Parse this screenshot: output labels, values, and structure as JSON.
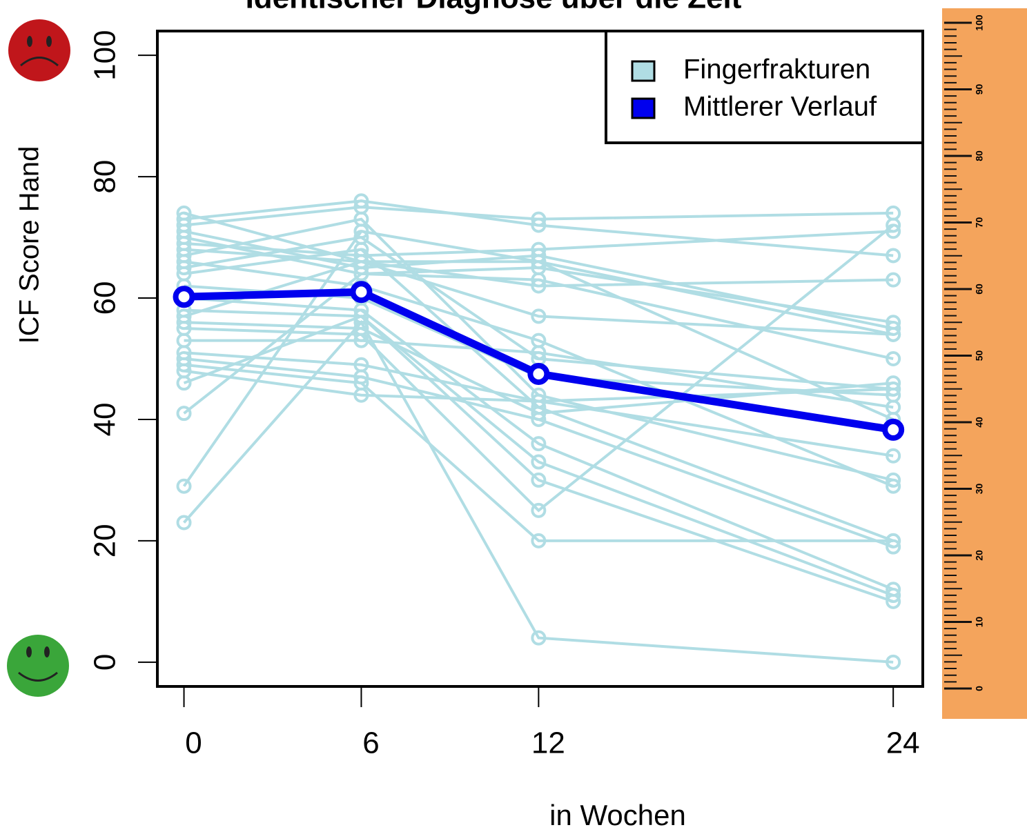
{
  "chart_data": {
    "type": "line",
    "title": "Identischer Diagnose über die Zeit",
    "x_label": "in Wochen",
    "y_label": "ICF Score Hand",
    "x": [
      0,
      6,
      12,
      24
    ],
    "xlim": [
      -0.9,
      25
    ],
    "xticks": [
      0,
      6,
      12,
      24
    ],
    "ylim": [
      -4,
      104
    ],
    "yticks": [
      0,
      20,
      40,
      60,
      80,
      100
    ],
    "legend": "top-right",
    "series": [
      {
        "name": "Fingerfrakturen",
        "color": "#b0dde4",
        "values": [
          [
            74,
            66,
            66,
            54
          ],
          [
            73,
            76,
            72,
            67
          ],
          [
            72,
            75,
            73,
            74
          ],
          [
            71,
            65,
            67,
            55
          ],
          [
            70,
            64,
            65,
            56
          ],
          [
            69,
            67,
            68,
            71
          ],
          [
            68,
            66,
            57,
            54
          ],
          [
            67,
            73,
            44,
            30
          ],
          [
            66,
            62,
            53,
            29
          ],
          [
            65,
            70,
            50,
            45
          ],
          [
            64,
            68,
            42,
            20
          ],
          [
            62,
            60,
            47,
            44
          ],
          [
            60,
            58,
            36,
            12
          ],
          [
            58,
            57,
            33,
            11
          ],
          [
            57,
            66,
            62,
            63
          ],
          [
            56,
            55,
            41,
            46
          ],
          [
            55,
            54,
            25,
            72
          ],
          [
            53,
            53,
            51,
            42
          ],
          [
            51,
            49,
            43,
            34
          ],
          [
            50,
            47,
            40,
            19
          ],
          [
            49,
            46,
            20,
            20
          ],
          [
            48,
            44,
            43,
            45
          ],
          [
            46,
            57,
            30,
            10
          ],
          [
            41,
            64,
            63,
            50
          ],
          [
            29,
            71,
            66,
            40
          ],
          [
            23,
            56,
            4,
            0
          ]
        ]
      },
      {
        "name": "Mittlerer Verlauf",
        "color": "#0000ee",
        "values": [
          60.2,
          61,
          47.5,
          38.3
        ]
      }
    ],
    "ruler": {
      "ticks": [
        0,
        10,
        20,
        30,
        40,
        50,
        60,
        70,
        80,
        90,
        100
      ]
    }
  }
}
